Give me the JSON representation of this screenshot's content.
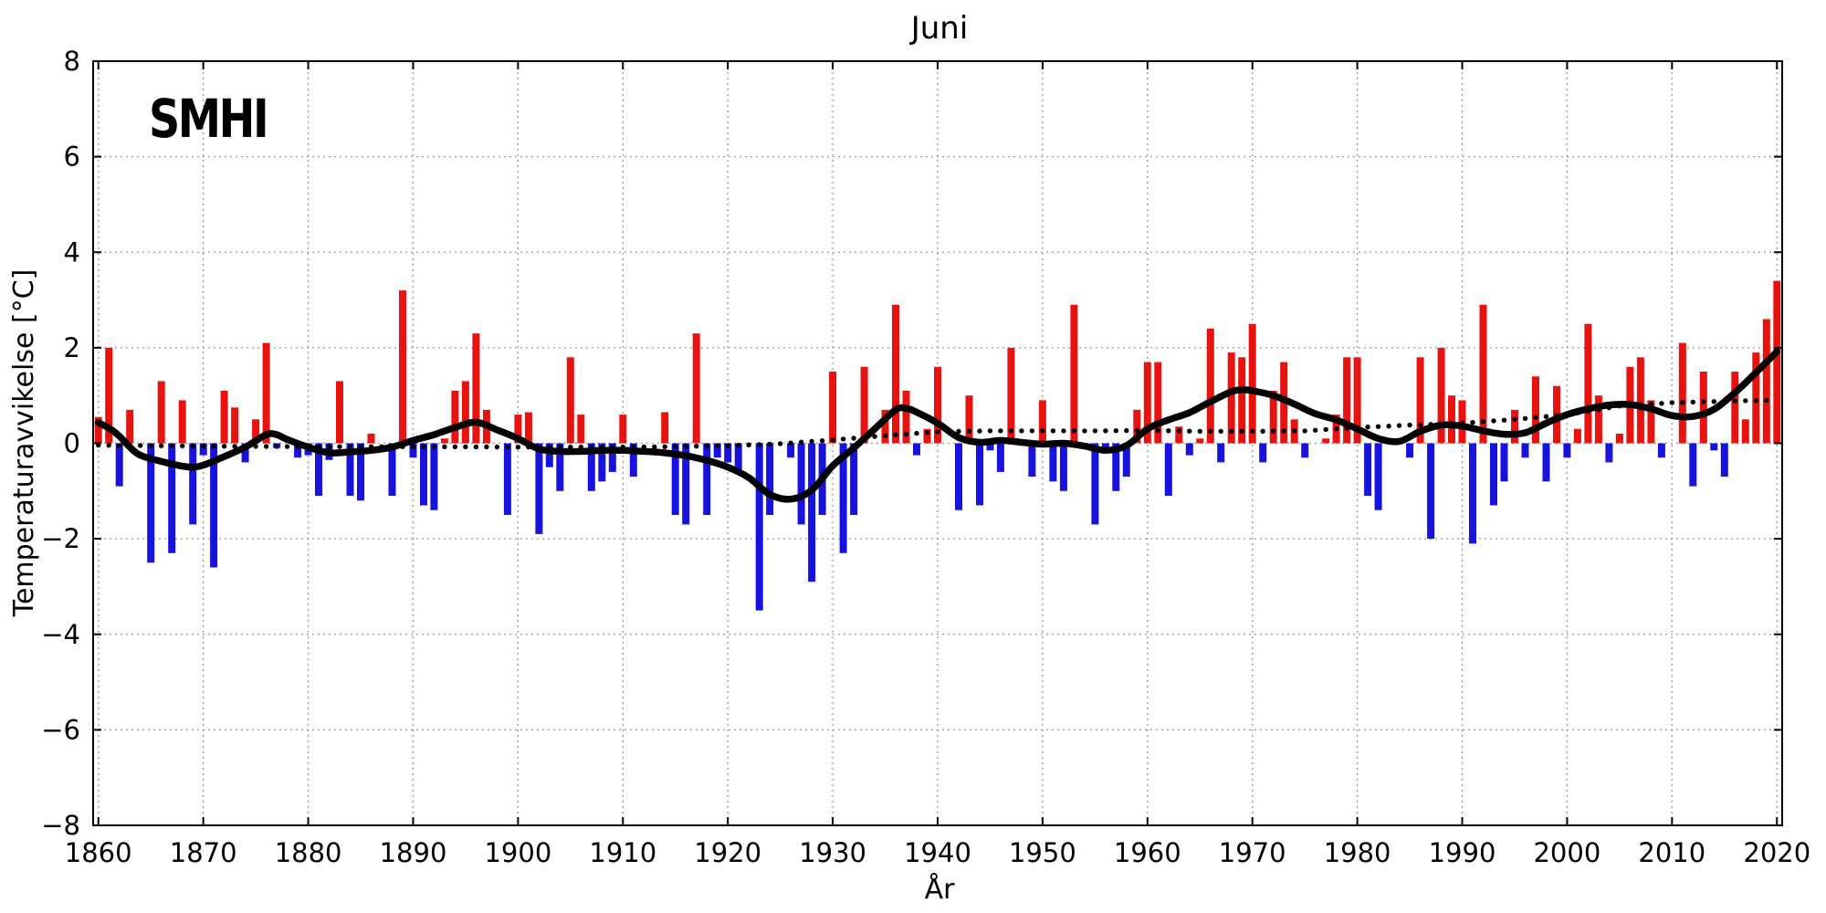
{
  "chart_data": {
    "type": "bar",
    "title": "Juni",
    "xlabel": "År",
    "ylabel": "Temperaturavvikelse [°C]",
    "watermark": "SMHI",
    "xlim": [
      1859.5,
      2020.5
    ],
    "ylim": [
      -8,
      8
    ],
    "ytick_step": 2,
    "xticks": [
      1860,
      1870,
      1880,
      1890,
      1900,
      1910,
      1920,
      1930,
      1940,
      1950,
      1960,
      1970,
      1980,
      1990,
      2000,
      2010,
      2020
    ],
    "grid": true,
    "legend": "none",
    "colors": {
      "positive_bar": "#e8130e",
      "negative_bar": "#1713dd",
      "smooth_curve": "#000000",
      "dotted_trend": "#000000",
      "gridline": "#999999",
      "frame": "#000000",
      "background": "#ffffff"
    },
    "bars": {
      "start_year": 1860,
      "end_year": 2020,
      "values": [
        0.55,
        2.0,
        -0.9,
        0.7,
        0.0,
        -2.5,
        1.3,
        -2.3,
        0.9,
        -1.7,
        -0.25,
        -2.6,
        1.1,
        0.75,
        -0.4,
        0.5,
        2.1,
        -0.1,
        0.0,
        -0.3,
        -0.25,
        -1.1,
        -0.35,
        1.3,
        -1.1,
        -1.2,
        0.2,
        0.0,
        -1.1,
        3.2,
        -0.3,
        -1.3,
        -1.4,
        0.1,
        1.1,
        1.3,
        2.3,
        0.7,
        0.0,
        -1.5,
        0.6,
        0.65,
        -1.9,
        -0.5,
        -1.0,
        1.8,
        0.6,
        -1.0,
        -0.8,
        -0.6,
        0.6,
        -0.7,
        0.0,
        0.0,
        0.65,
        -1.5,
        -1.7,
        2.3,
        -1.5,
        -0.3,
        -0.4,
        -0.55,
        0.0,
        -3.5,
        -1.5,
        0.0,
        -0.3,
        -1.7,
        -2.9,
        -1.5,
        1.5,
        -2.3,
        -1.5,
        1.6,
        0.0,
        0.7,
        2.9,
        1.1,
        -0.25,
        0.3,
        1.6,
        0.0,
        -1.4,
        1.0,
        -1.3,
        -0.15,
        -0.6,
        2.0,
        0.0,
        -0.7,
        0.9,
        -0.8,
        -1.0,
        2.9,
        0.0,
        -1.7,
        -0.2,
        -1.0,
        -0.7,
        0.7,
        1.7,
        1.7,
        -1.1,
        0.35,
        -0.25,
        0.1,
        2.4,
        -0.4,
        1.9,
        1.8,
        2.5,
        -0.4,
        1.1,
        1.7,
        0.5,
        -0.3,
        0.0,
        0.1,
        0.6,
        1.8,
        1.8,
        -1.1,
        -1.4,
        0.0,
        0.0,
        -0.3,
        1.8,
        -2.0,
        2.0,
        1.0,
        0.9,
        -2.1,
        2.9,
        -1.3,
        -0.8,
        0.7,
        -0.3,
        1.4,
        -0.8,
        1.2,
        -0.3,
        0.3,
        2.5,
        1.0,
        -0.4,
        0.2,
        1.6,
        1.8,
        0.9,
        -0.3,
        0.0,
        2.1,
        -0.9,
        1.5,
        -0.15,
        -0.7,
        1.5,
        0.5,
        1.9,
        2.6,
        3.4
      ]
    },
    "smooth_curve_points": [
      [
        1860,
        0.43
      ],
      [
        1861,
        0.32
      ],
      [
        1862,
        0.15
      ],
      [
        1863,
        -0.08
      ],
      [
        1864,
        -0.25
      ],
      [
        1866,
        -0.38
      ],
      [
        1868,
        -0.48
      ],
      [
        1869,
        -0.5
      ],
      [
        1870,
        -0.46
      ],
      [
        1872,
        -0.28
      ],
      [
        1874,
        -0.08
      ],
      [
        1876,
        0.18
      ],
      [
        1877,
        0.18
      ],
      [
        1878,
        0.08
      ],
      [
        1880,
        -0.08
      ],
      [
        1882,
        -0.2
      ],
      [
        1884,
        -0.18
      ],
      [
        1886,
        -0.15
      ],
      [
        1888,
        -0.08
      ],
      [
        1890,
        0.06
      ],
      [
        1892,
        0.18
      ],
      [
        1894,
        0.33
      ],
      [
        1896,
        0.44
      ],
      [
        1898,
        0.28
      ],
      [
        1900,
        0.1
      ],
      [
        1902,
        -0.12
      ],
      [
        1904,
        -0.17
      ],
      [
        1906,
        -0.17
      ],
      [
        1908,
        -0.15
      ],
      [
        1910,
        -0.15
      ],
      [
        1912,
        -0.17
      ],
      [
        1914,
        -0.2
      ],
      [
        1916,
        -0.26
      ],
      [
        1918,
        -0.36
      ],
      [
        1920,
        -0.5
      ],
      [
        1922,
        -0.72
      ],
      [
        1924,
        -1.07
      ],
      [
        1926,
        -1.17
      ],
      [
        1928,
        -0.98
      ],
      [
        1930,
        -0.47
      ],
      [
        1932,
        -0.1
      ],
      [
        1934,
        0.3
      ],
      [
        1936,
        0.7
      ],
      [
        1937,
        0.73
      ],
      [
        1938,
        0.65
      ],
      [
        1940,
        0.42
      ],
      [
        1942,
        0.12
      ],
      [
        1944,
        0.02
      ],
      [
        1946,
        0.06
      ],
      [
        1948,
        0.02
      ],
      [
        1950,
        -0.02
      ],
      [
        1952,
        0.0
      ],
      [
        1954,
        -0.06
      ],
      [
        1956,
        -0.15
      ],
      [
        1958,
        -0.05
      ],
      [
        1960,
        0.3
      ],
      [
        1962,
        0.49
      ],
      [
        1964,
        0.64
      ],
      [
        1966,
        0.87
      ],
      [
        1968,
        1.08
      ],
      [
        1969,
        1.12
      ],
      [
        1970,
        1.1
      ],
      [
        1972,
        1.0
      ],
      [
        1974,
        0.82
      ],
      [
        1976,
        0.62
      ],
      [
        1978,
        0.49
      ],
      [
        1980,
        0.3
      ],
      [
        1982,
        0.1
      ],
      [
        1984,
        0.04
      ],
      [
        1986,
        0.25
      ],
      [
        1988,
        0.38
      ],
      [
        1990,
        0.36
      ],
      [
        1992,
        0.26
      ],
      [
        1994,
        0.19
      ],
      [
        1996,
        0.22
      ],
      [
        1998,
        0.42
      ],
      [
        2000,
        0.6
      ],
      [
        2002,
        0.72
      ],
      [
        2004,
        0.8
      ],
      [
        2006,
        0.81
      ],
      [
        2008,
        0.72
      ],
      [
        2010,
        0.58
      ],
      [
        2012,
        0.56
      ],
      [
        2014,
        0.71
      ],
      [
        2016,
        1.06
      ],
      [
        2018,
        1.48
      ],
      [
        2020,
        1.92
      ]
    ],
    "dotted_trend_points": [
      [
        1860,
        -0.04
      ],
      [
        1870,
        -0.06
      ],
      [
        1880,
        -0.07
      ],
      [
        1890,
        -0.07
      ],
      [
        1900,
        -0.08
      ],
      [
        1910,
        -0.08
      ],
      [
        1915,
        -0.07
      ],
      [
        1920,
        -0.05
      ],
      [
        1925,
        -0.01
      ],
      [
        1930,
        0.07
      ],
      [
        1935,
        0.16
      ],
      [
        1940,
        0.24
      ],
      [
        1945,
        0.26
      ],
      [
        1950,
        0.26
      ],
      [
        1955,
        0.26
      ],
      [
        1960,
        0.27
      ],
      [
        1965,
        0.25
      ],
      [
        1970,
        0.25
      ],
      [
        1975,
        0.26
      ],
      [
        1980,
        0.33
      ],
      [
        1985,
        0.38
      ],
      [
        1990,
        0.42
      ],
      [
        1995,
        0.5
      ],
      [
        2000,
        0.6
      ],
      [
        2005,
        0.78
      ],
      [
        2010,
        0.85
      ],
      [
        2015,
        0.88
      ],
      [
        2019,
        0.9
      ]
    ]
  }
}
